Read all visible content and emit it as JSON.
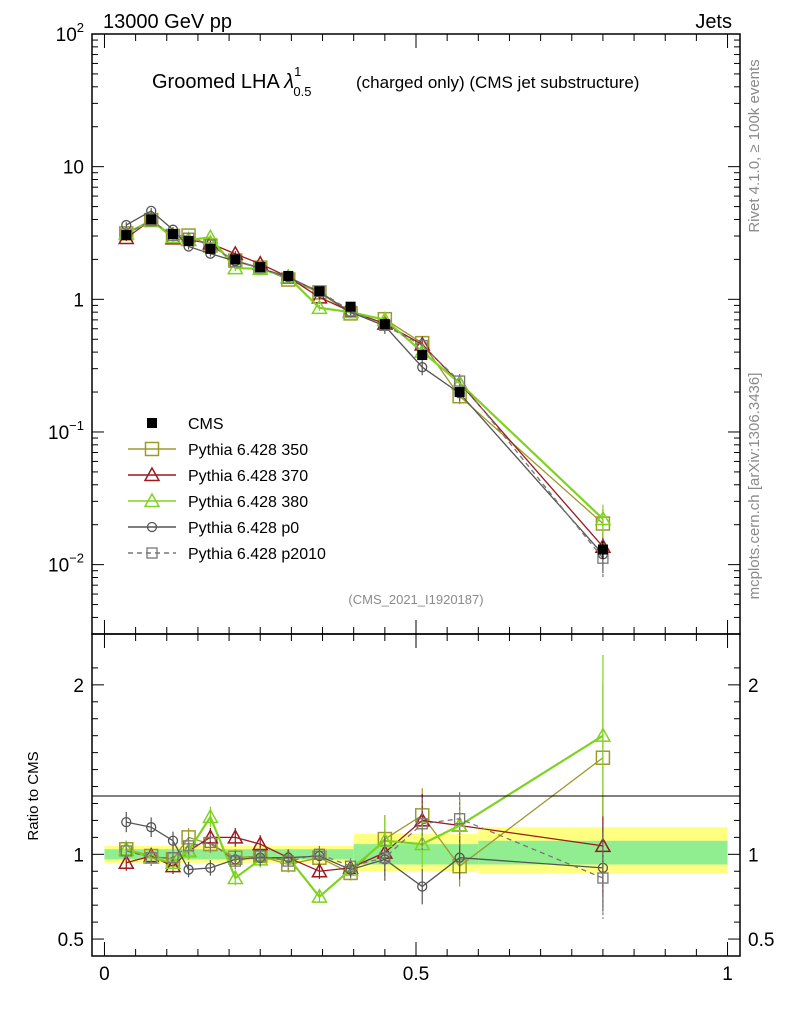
{
  "header": {
    "energy_label": "13000 GeV pp",
    "process_label": "Jets",
    "title_main": "Groomed LHA ",
    "title_lambda": "λ",
    "title_sup": "1",
    "title_sub": "0.5",
    "title_tail": "(charged only) (CMS jet substructure)",
    "rivet_label": "Rivet 4.1.0, ≥ 100k events",
    "mcplots_label": "mcplots.cern.ch [arXiv:1306.3436]",
    "analysis_label": "(CMS_2021_I1920187)"
  },
  "chart_data": {
    "type": "line",
    "x": [
      0.035,
      0.075,
      0.11,
      0.135,
      0.17,
      0.21,
      0.25,
      0.295,
      0.345,
      0.395,
      0.45,
      0.51,
      0.57,
      0.8
    ],
    "main": {
      "yscale": "log",
      "ylim": [
        0.003,
        100
      ],
      "xlim": [
        -0.02,
        1.02
      ],
      "y_ticks": [
        {
          "value": 0.01,
          "base": "10",
          "exp": "−2"
        },
        {
          "value": 0.1,
          "base": "10",
          "exp": "−1"
        },
        {
          "value": 1,
          "base": "1",
          "exp": ""
        },
        {
          "value": 10,
          "base": "10",
          "exp": ""
        },
        {
          "value": 100,
          "base": "10",
          "exp": "2"
        }
      ]
    },
    "ratio": {
      "ylabel": "Ratio to CMS",
      "ylim": [
        0.4,
        2.3
      ],
      "y_ticks": [
        {
          "value": 0.5,
          "label": "0.5"
        },
        {
          "value": 1,
          "label": "1"
        },
        {
          "value": 2,
          "label": "2"
        }
      ],
      "band_bins": [
        {
          "x0": 0.0,
          "x1": 0.4,
          "inner": [
            0.97,
            1.03
          ],
          "outer": [
            0.95,
            1.05
          ]
        },
        {
          "x0": 0.4,
          "x1": 0.6,
          "inner": [
            0.94,
            1.06
          ],
          "outer": [
            0.9,
            1.12
          ]
        },
        {
          "x0": 0.6,
          "x1": 1.0,
          "inner": [
            0.94,
            1.08
          ],
          "outer": [
            0.89,
            1.16
          ]
        }
      ]
    },
    "x_ticks": [
      {
        "value": 0,
        "label": "0"
      },
      {
        "value": 0.5,
        "label": "0.5"
      },
      {
        "value": 1,
        "label": "1"
      }
    ],
    "cms": {
      "name": "CMS",
      "values": [
        3.05,
        4.0,
        3.1,
        2.75,
        2.4,
        2.0,
        1.75,
        1.5,
        1.15,
        0.88,
        0.65,
        0.38,
        0.2,
        0.013
      ]
    },
    "series": [
      {
        "name": "Pythia 6.428 350",
        "color": "#9c9a2a",
        "marker": "square",
        "dashed": false,
        "ratio": [
          1.03,
          0.99,
          0.97,
          1.1,
          1.06,
          0.98,
          0.99,
          0.94,
          0.98,
          0.89,
          1.09,
          1.23,
          0.93,
          1.57
        ]
      },
      {
        "name": "Pythia 6.428 370",
        "color": "#9a1a1e",
        "marker": "triangle",
        "dashed": false,
        "ratio": [
          0.95,
          0.99,
          0.93,
          1.02,
          1.1,
          1.1,
          1.06,
          0.98,
          0.9,
          0.92,
          1.01,
          1.2,
          1.17,
          1.05
        ]
      },
      {
        "name": "Pythia 6.428 380",
        "color": "#7ed321",
        "marker": "triangle",
        "dashed": false,
        "ratio": [
          1.03,
          0.98,
          0.95,
          1.02,
          1.22,
          0.86,
          0.97,
          0.98,
          0.75,
          0.91,
          1.08,
          1.06,
          1.17,
          1.7
        ]
      },
      {
        "name": "Pythia 6.428 p0",
        "color": "#555555",
        "marker": "circle",
        "dashed": false,
        "ratio": [
          1.19,
          1.16,
          1.08,
          0.91,
          0.92,
          0.97,
          0.98,
          0.98,
          0.99,
          0.91,
          0.97,
          0.81,
          0.98,
          0.92
        ]
      },
      {
        "name": "Pythia 6.428 p2010",
        "color": "#777777",
        "marker": "square-small",
        "dashed": true,
        "ratio": [
          1.02,
          0.98,
          0.98,
          1.05,
          1.07,
          0.96,
          0.99,
          0.96,
          1.0,
          0.93,
          0.98,
          1.18,
          1.21,
          0.86
        ]
      }
    ]
  }
}
